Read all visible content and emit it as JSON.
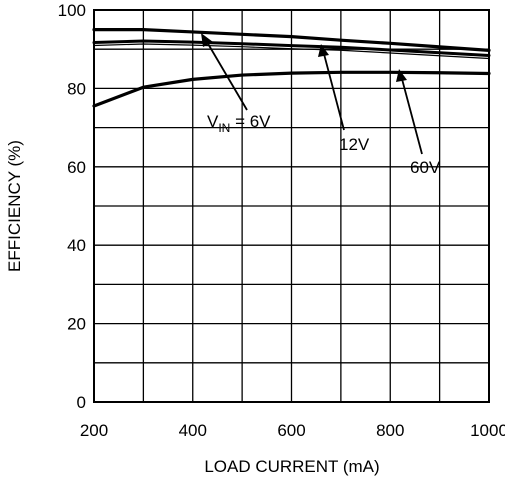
{
  "chart_data": {
    "type": "line",
    "title": "",
    "xlabel": "LOAD CURRENT (mA)",
    "ylabel": "EFFICIENCY (%)",
    "xlim": [
      200,
      1000
    ],
    "ylim": [
      0,
      100
    ],
    "x_ticks": [
      200,
      400,
      600,
      800,
      1000
    ],
    "y_ticks": [
      0,
      20,
      40,
      60,
      80,
      100
    ],
    "grid": true,
    "x_grid_step": 100,
    "y_grid_step": 10,
    "series": [
      {
        "name": "6V",
        "x": [
          200,
          300,
          400,
          500,
          600,
          700,
          800,
          900,
          1000
        ],
        "y": [
          95.0,
          95.0,
          94.4,
          93.8,
          93.2,
          92.3,
          91.5,
          90.6,
          89.7
        ]
      },
      {
        "name": "12V",
        "x": [
          200,
          300,
          400,
          500,
          600,
          700,
          800,
          900,
          1000
        ],
        "y": [
          91.7,
          92.1,
          91.8,
          91.4,
          90.9,
          90.5,
          89.8,
          89.1,
          88.4
        ]
      },
      {
        "name": "60V",
        "x": [
          200,
          300,
          400,
          500,
          600,
          700,
          800,
          900,
          1000
        ],
        "y": [
          75.5,
          80.3,
          82.3,
          83.4,
          83.9,
          84.1,
          84.1,
          84.0,
          83.8
        ]
      }
    ],
    "annotations": [
      {
        "id": "vin",
        "prefix": "V",
        "subscript": "IN",
        "suffix": " = 6V",
        "series": "6V"
      },
      {
        "id": "v12",
        "text": "12V",
        "series": "12V"
      },
      {
        "id": "v60",
        "text": "60V",
        "series": "60V"
      }
    ]
  }
}
